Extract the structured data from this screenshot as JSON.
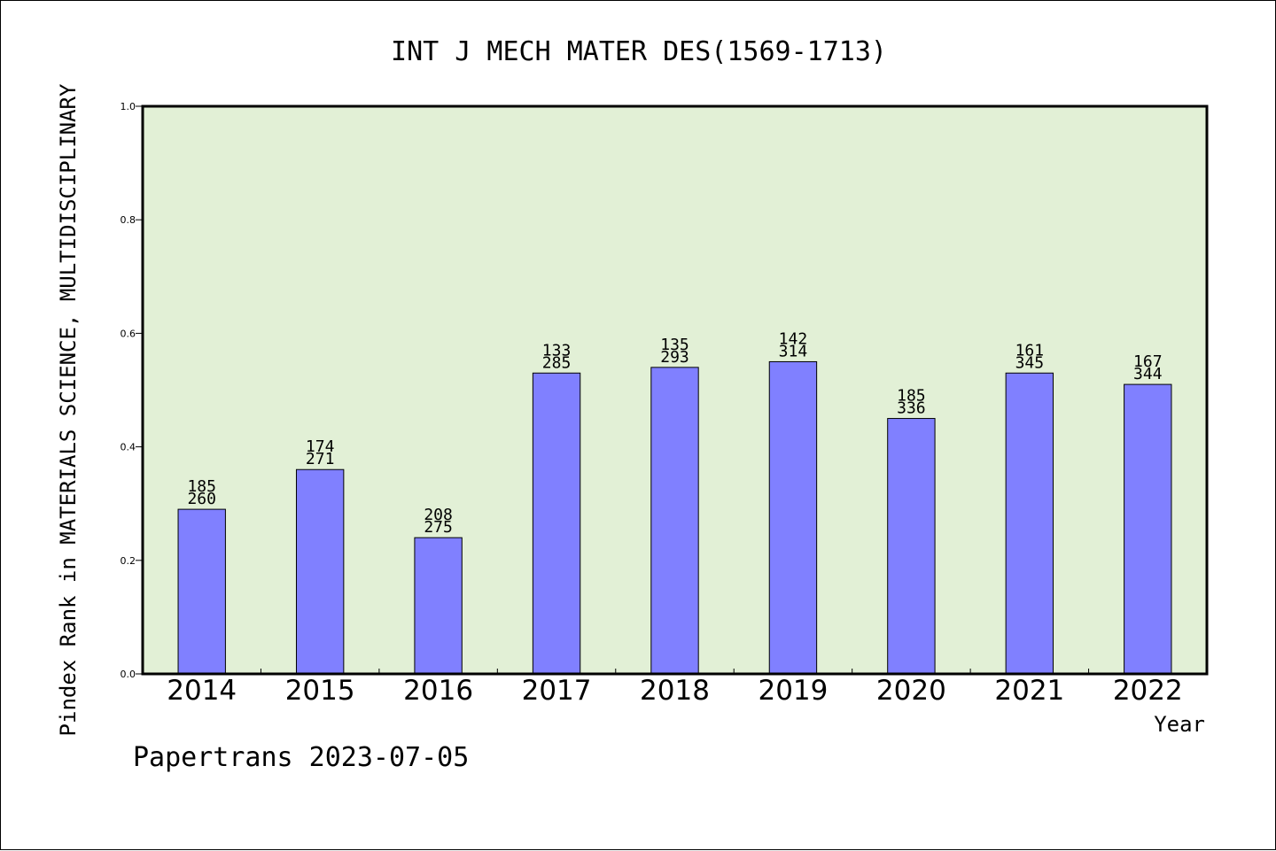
{
  "chart_data": {
    "type": "bar",
    "title": "INT J MECH MATER DES(1569-1713)",
    "xlabel": "Year",
    "ylabel": "Pindex Rank in MATERIALS SCIENCE, MULTIDISCIPLINARY",
    "ylim": [
      0,
      1.0
    ],
    "yticks": [
      "0.0",
      "0.2",
      "0.4",
      "0.6",
      "0.8",
      "1.0"
    ],
    "categories": [
      "2014",
      "2015",
      "2016",
      "2017",
      "2018",
      "2019",
      "2020",
      "2021",
      "2022"
    ],
    "values": [
      0.29,
      0.36,
      0.24,
      0.53,
      0.54,
      0.55,
      0.45,
      0.53,
      0.51
    ],
    "labels_top": [
      "185",
      "174",
      "208",
      "133",
      "135",
      "142",
      "185",
      "161",
      "167"
    ],
    "labels_bottom": [
      "260",
      "271",
      "275",
      "285",
      "293",
      "314",
      "336",
      "345",
      "344"
    ],
    "colors": {
      "plot_bg": "#e2f0d6",
      "bar": "#8080ff",
      "axis": "#000000"
    },
    "grid": false
  },
  "footer": {
    "text": "Papertrans 2023-07-05"
  }
}
